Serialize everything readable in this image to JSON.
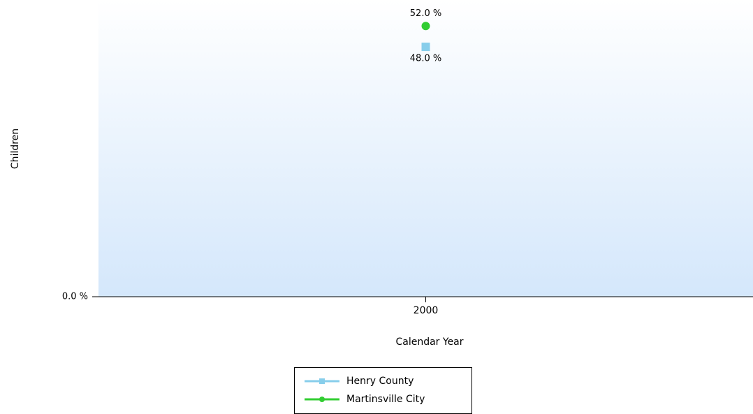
{
  "chart_data": {
    "type": "line",
    "y_label": "Children",
    "x_label": "Calendar Year",
    "categories": [
      "2000"
    ],
    "series": [
      {
        "name": "Henry County",
        "color": "#87ceeb",
        "marker": "square",
        "values": [
          48
        ],
        "value_labels": [
          "48.0 %"
        ]
      },
      {
        "name": "Martinsville City",
        "color": "#32cd32",
        "marker": "circle",
        "values": [
          52
        ],
        "value_labels": [
          "52.0 %"
        ]
      }
    ],
    "ylim": [
      0,
      57
    ],
    "yticks": [
      {
        "value": 0,
        "label": "0.0 %"
      }
    ],
    "legend": "bottom"
  }
}
